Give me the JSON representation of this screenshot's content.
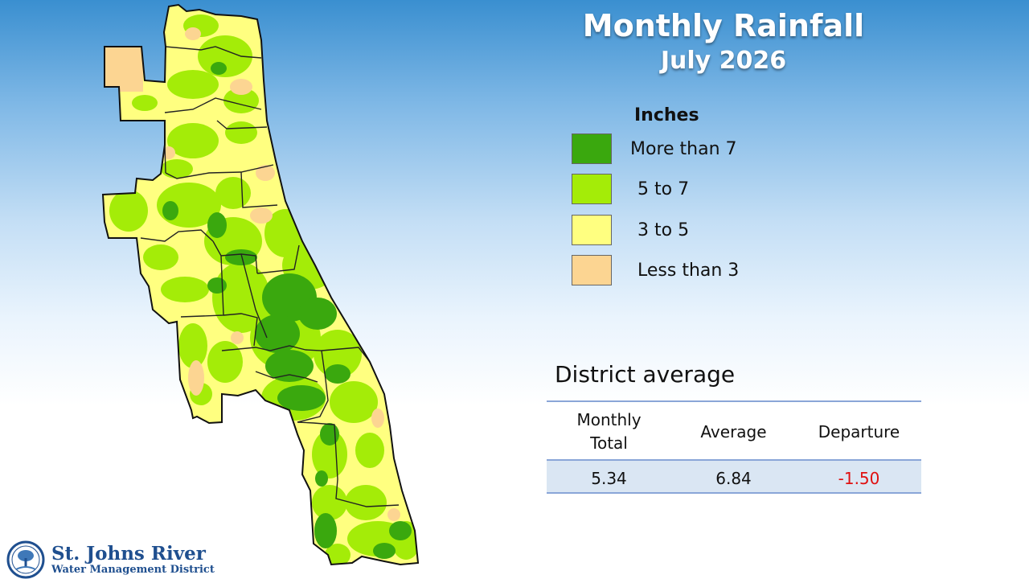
{
  "header": {
    "title": "Monthly Rainfall",
    "subtitle": "July 2026"
  },
  "legend": {
    "title": "Inches",
    "items": [
      {
        "label": "More than 7",
        "color": "#3aa80e"
      },
      {
        "label": "5 to 7",
        "color": "#a4ec08"
      },
      {
        "label": "3 to 5",
        "color": "#ffff80"
      },
      {
        "label": "Less than 3",
        "color": "#fcd592"
      }
    ]
  },
  "district_average": {
    "title": "District average",
    "columns": [
      "Monthly\nTotal",
      "Average",
      "Departure"
    ],
    "values": [
      "5.34",
      "6.84",
      "-1.50"
    ],
    "departure_color": "#e01010"
  },
  "logo": {
    "name": "St. Johns River",
    "subtitle": "Water Management District",
    "icon": "tree-seal-icon"
  }
}
